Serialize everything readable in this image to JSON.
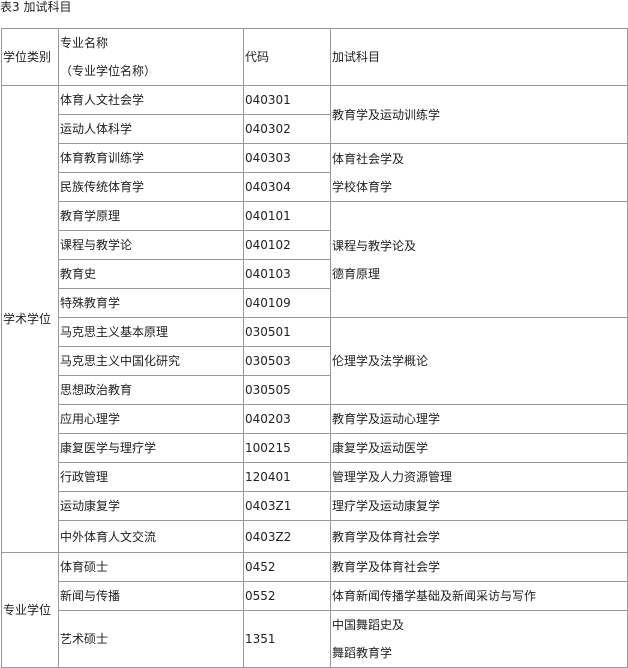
{
  "caption": "表3 加试科目",
  "headers": {
    "category": "学位类别",
    "major_line1": "专业名称",
    "major_line2": "（专业学位名称）",
    "code": "代码",
    "exam": "加试科目"
  },
  "groups": [
    {
      "category": "学术学位",
      "rows": [
        {
          "major": "体育人文社会学",
          "code": "040301"
        },
        {
          "major": "运动人体科学",
          "code": "040302"
        },
        {
          "major": "体育教育训练学",
          "code": "040303"
        },
        {
          "major": "民族传统体育学",
          "code": "040304"
        },
        {
          "major": "教育学原理",
          "code": "040101"
        },
        {
          "major": "课程与教学论",
          "code": "040102"
        },
        {
          "major": "教育史",
          "code": "040103"
        },
        {
          "major": "特殊教育学",
          "code": "040109"
        },
        {
          "major": "马克思主义基本原理",
          "code": "030501"
        },
        {
          "major": "马克思主义中国化研究",
          "code": "030503"
        },
        {
          "major": "思想政治教育",
          "code": "030505"
        },
        {
          "major": "应用心理学",
          "code": "040203"
        },
        {
          "major": "康复医学与理疗学",
          "code": "100215"
        },
        {
          "major": "行政管理",
          "code": "120401"
        },
        {
          "major": "运动康复学",
          "code": "0403Z1"
        },
        {
          "major": "中外体育人文交流",
          "code": "0403Z2"
        }
      ],
      "exams": [
        {
          "lines": [
            "教育学及运动训练学"
          ]
        },
        {
          "lines": [
            "体育社会学及",
            "学校体育学"
          ]
        },
        {
          "lines": [
            "课程与教学论及",
            "德育原理"
          ]
        },
        {
          "lines": [
            "伦理学及法学概论"
          ]
        },
        {
          "lines": [
            "教育学及运动心理学"
          ]
        },
        {
          "lines": [
            "康复学及运动医学"
          ]
        },
        {
          "lines": [
            "管理学及人力资源管理"
          ]
        },
        {
          "lines": [
            "理疗学及运动康复学"
          ]
        },
        {
          "lines": [
            "教育学及体育社会学"
          ]
        }
      ]
    },
    {
      "category": "专业学位",
      "rows": [
        {
          "major": "体育硕士",
          "code": "0452",
          "exam": "教育学及体育社会学"
        },
        {
          "major": "新闻与传播",
          "code": "0552",
          "exam": "体育新闻传播学基础及新闻采访与写作"
        },
        {
          "major": "艺术硕士",
          "code": "1351",
          "exam_lines": [
            "中国舞蹈史及",
            "舞蹈教育学"
          ]
        }
      ]
    }
  ]
}
